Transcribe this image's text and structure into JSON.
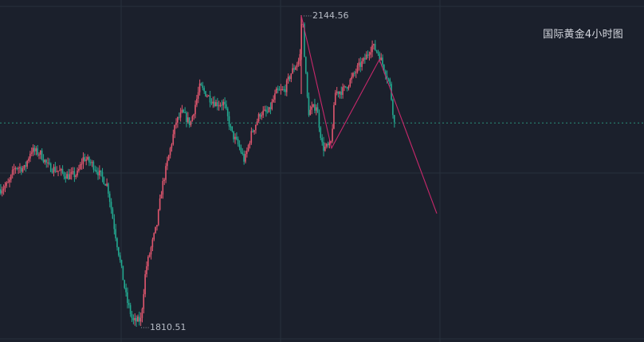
{
  "chart_data": {
    "type": "candlestick",
    "title": "国际黄金4小时图",
    "ylim": [
      1800,
      2155
    ],
    "grid": true,
    "colors": {
      "background": "#1b202c",
      "grid": "#27303c",
      "up": "#e0566e",
      "down": "#23a890",
      "trendline": "#c8286b",
      "price_line": "#2a8f7a"
    },
    "annotations": [
      {
        "label": "2144.56",
        "value": 2144.56
      },
      {
        "label": "1810.51",
        "value": 1810.51
      }
    ],
    "current_price": 2029,
    "close_path": [
      [
        0,
        1958
      ],
      [
        10,
        1964
      ],
      [
        18,
        1982
      ],
      [
        30,
        1980
      ],
      [
        38,
        2000
      ],
      [
        50,
        1996
      ],
      [
        60,
        1982
      ],
      [
        72,
        1978
      ],
      [
        84,
        1972
      ],
      [
        96,
        1974
      ],
      [
        104,
        1992
      ],
      [
        116,
        1984
      ],
      [
        126,
        1972
      ],
      [
        134,
        1962
      ],
      [
        142,
        1920
      ],
      [
        150,
        1880
      ],
      [
        158,
        1840
      ],
      [
        166,
        1816
      ],
      [
        176,
        1818
      ],
      [
        182,
        1872
      ],
      [
        196,
        1920
      ],
      [
        202,
        1958
      ],
      [
        210,
        1990
      ],
      [
        220,
        2030
      ],
      [
        228,
        2040
      ],
      [
        238,
        2028
      ],
      [
        250,
        2068
      ],
      [
        262,
        2056
      ],
      [
        270,
        2050
      ],
      [
        280,
        2050
      ],
      [
        290,
        2018
      ],
      [
        300,
        2002
      ],
      [
        306,
        1988
      ],
      [
        314,
        2016
      ],
      [
        326,
        2040
      ],
      [
        336,
        2040
      ],
      [
        346,
        2062
      ],
      [
        356,
        2064
      ],
      [
        364,
        2082
      ],
      [
        374,
        2096
      ],
      [
        380,
        2118
      ],
      [
        386,
        2040
      ],
      [
        396,
        2048
      ],
      [
        404,
        2002
      ],
      [
        414,
        2004
      ],
      [
        420,
        2062
      ],
      [
        430,
        2064
      ],
      [
        440,
        2076
      ],
      [
        448,
        2088
      ],
      [
        456,
        2096
      ],
      [
        466,
        2112
      ],
      [
        474,
        2104
      ],
      [
        480,
        2090
      ],
      [
        488,
        2072
      ],
      [
        494,
        2028
      ]
    ],
    "trendline": [
      [
        378,
        2144
      ],
      [
        416,
        2002
      ],
      [
        476,
        2097
      ],
      [
        548,
        1932
      ]
    ]
  }
}
